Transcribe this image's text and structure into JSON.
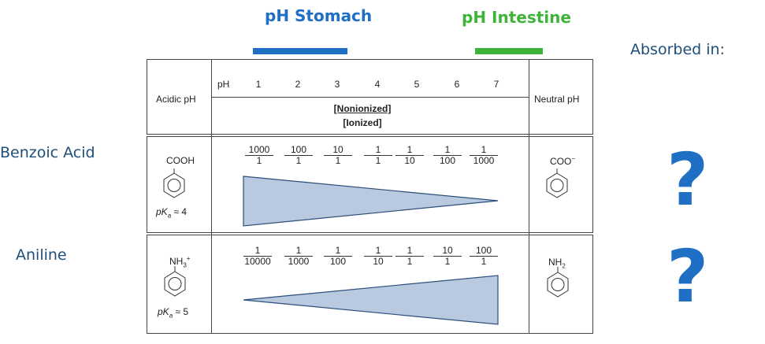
{
  "header": {
    "stomach_label": "pH Stomach",
    "intestine_label": "pH Intestine",
    "absorbed_label": "Absorbed in:",
    "stomach_color": "#1f6fc4",
    "intestine_color": "#3db339"
  },
  "rows": {
    "benzoic_label": "Benzoic Acid",
    "aniline_label": "Aniline"
  },
  "table": {
    "acidic_label": "Acidic pH",
    "neutral_label": "Neutral pH",
    "ph_label": "pH",
    "ph_values": [
      "1",
      "2",
      "3",
      "4",
      "5",
      "6",
      "7"
    ],
    "nonionized_label": "[Nonionized]",
    "ionized_label": "[Ionized]",
    "benzoic": {
      "acid_formula": "COOH",
      "base_formula": "COO",
      "base_charge": "−",
      "pka_prefix": "pK",
      "pka_sub": "a",
      "pka_value": "≈ 4",
      "ratios": [
        {
          "num": "1000",
          "den": "1"
        },
        {
          "num": "100",
          "den": "1"
        },
        {
          "num": "10",
          "den": "1"
        },
        {
          "num": "1",
          "den": "1"
        },
        {
          "num": "1",
          "den": "10"
        },
        {
          "num": "1",
          "den": "100"
        },
        {
          "num": "1",
          "den": "1000"
        }
      ]
    },
    "aniline": {
      "acid_formula": "NH",
      "acid_sub": "3",
      "acid_charge": "+",
      "base_formula": "NH",
      "base_sub": "2",
      "pka_prefix": "pK",
      "pka_sub": "a",
      "pka_value": "≈ 5",
      "ratios": [
        {
          "num": "1",
          "den": "10000"
        },
        {
          "num": "1",
          "den": "1000"
        },
        {
          "num": "1",
          "den": "100"
        },
        {
          "num": "1",
          "den": "10"
        },
        {
          "num": "1",
          "den": "1"
        },
        {
          "num": "10",
          "den": "1"
        },
        {
          "num": "100",
          "den": "1"
        }
      ]
    }
  },
  "question_marks": [
    "?",
    "?"
  ]
}
